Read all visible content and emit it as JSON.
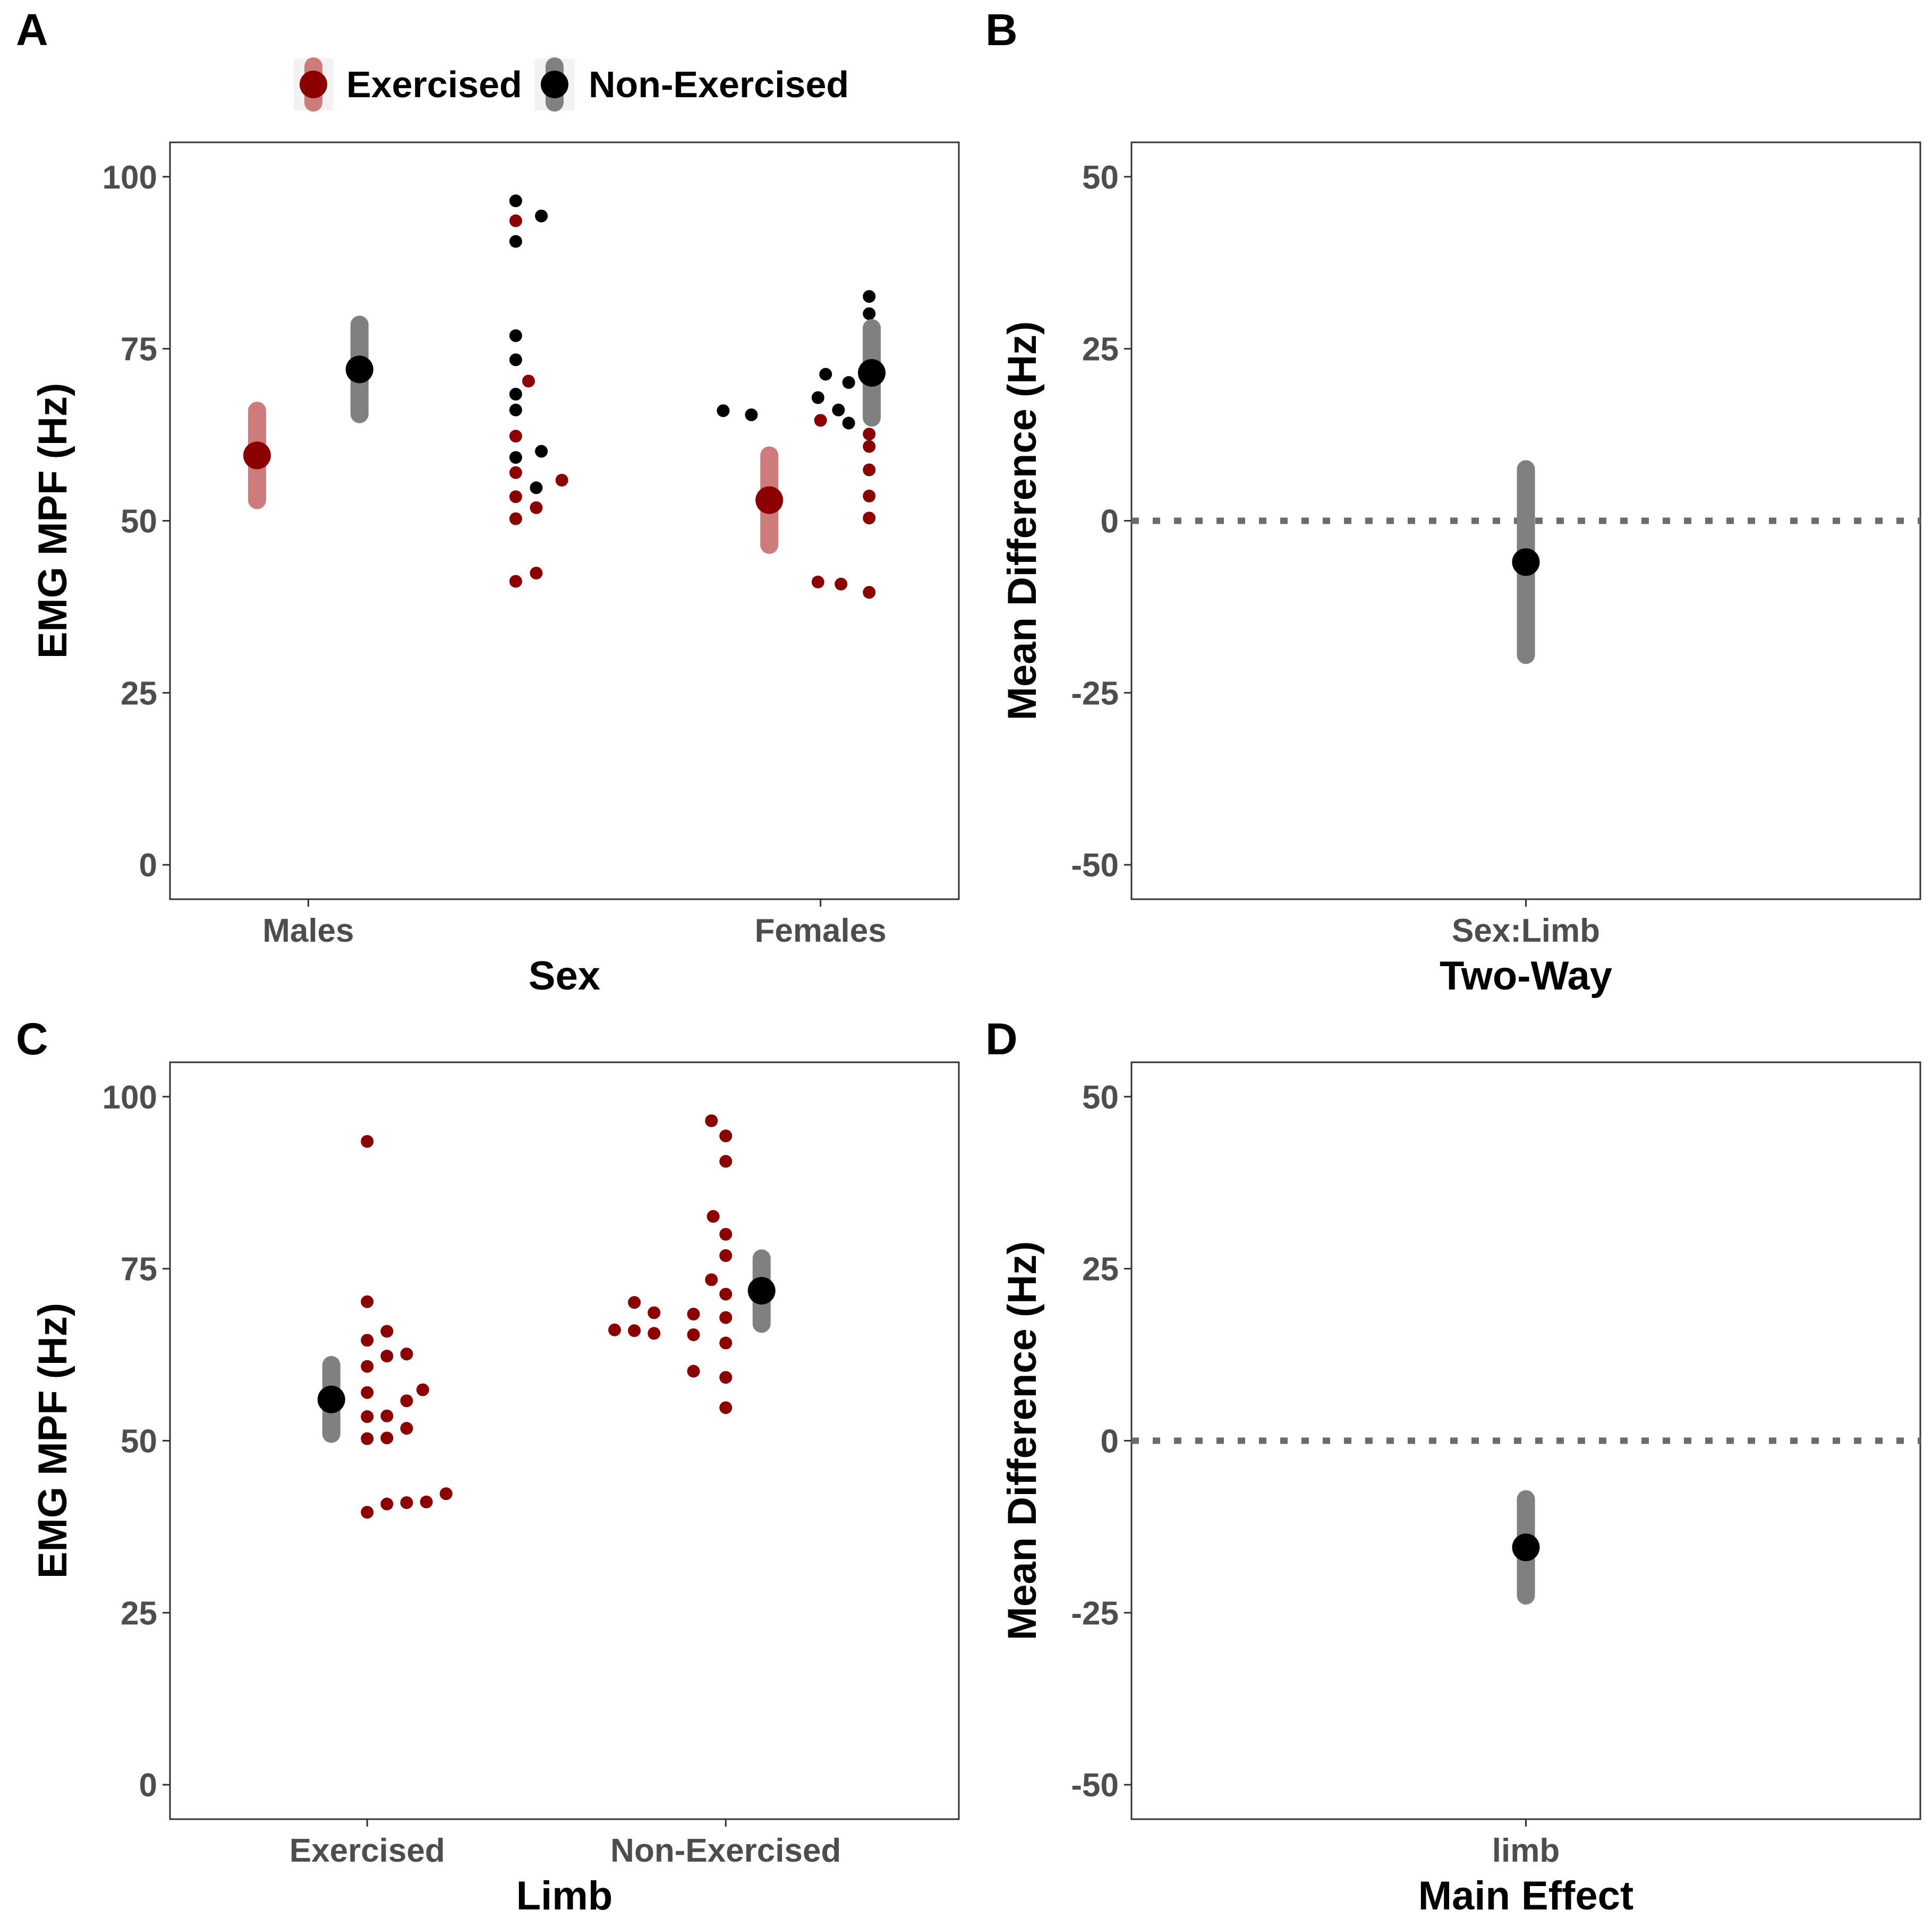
{
  "colors": {
    "exercised": "#8b0000",
    "exercised_ci": "#cd7b7b",
    "non_exercised": "#000000",
    "non_exercised_ci": "#808080",
    "ref_line": "#6b6b6b"
  },
  "legend": {
    "items": [
      {
        "label": "Exercised",
        "color": "#8b0000",
        "ci_color": "#cd7b7b"
      },
      {
        "label": "Non-Exercised",
        "color": "#000000",
        "ci_color": "#808080"
      }
    ]
  },
  "chart_data": [
    {
      "panel": "A",
      "type": "scatter",
      "xlabel": "Sex",
      "ylabel": "EMG MPF (Hz)",
      "ylim": [
        -5,
        105
      ],
      "yticks": [
        0,
        25,
        50,
        75,
        100
      ],
      "ytick_labels": [
        "0",
        "25",
        "50",
        "75",
        "100"
      ],
      "categories": [
        "Males",
        "Females"
      ],
      "summary": [
        {
          "category": "Males",
          "series": "Exercised",
          "offset": -0.1,
          "mean": 59.5,
          "lo": 53,
          "hi": 66,
          "color": "#8b0000",
          "ci_color": "#cd7b7b"
        },
        {
          "category": "Males",
          "series": "Non-Exercised",
          "offset": 0.1,
          "mean": 72,
          "lo": 65.5,
          "hi": 78.5,
          "color": "#000000",
          "ci_color": "#808080"
        },
        {
          "category": "Females",
          "series": "Exercised",
          "offset": -0.1,
          "mean": 53,
          "lo": 46.5,
          "hi": 59.5,
          "color": "#8b0000",
          "ci_color": "#cd7b7b"
        },
        {
          "category": "Females",
          "series": "Non-Exercised",
          "offset": 0.1,
          "mean": 71.5,
          "lo": 65,
          "hi": 78,
          "color": "#000000",
          "ci_color": "#808080"
        }
      ],
      "points": [
        {
          "x": 0.405,
          "y": 96.5,
          "color": "#000000"
        },
        {
          "x": 0.455,
          "y": 94.3,
          "color": "#000000"
        },
        {
          "x": 0.405,
          "y": 93.6,
          "color": "#8b0000"
        },
        {
          "x": 0.405,
          "y": 90.6,
          "color": "#000000"
        },
        {
          "x": 0.405,
          "y": 76.9,
          "color": "#000000"
        },
        {
          "x": 0.405,
          "y": 73.4,
          "color": "#000000"
        },
        {
          "x": 0.43,
          "y": 70.3,
          "color": "#8b0000"
        },
        {
          "x": 0.405,
          "y": 68.4,
          "color": "#000000"
        },
        {
          "x": 0.405,
          "y": 66.1,
          "color": "#000000"
        },
        {
          "x": 0.405,
          "y": 62.3,
          "color": "#8b0000"
        },
        {
          "x": 0.455,
          "y": 60.1,
          "color": "#000000"
        },
        {
          "x": 0.405,
          "y": 59.2,
          "color": "#000000"
        },
        {
          "x": 0.405,
          "y": 57.0,
          "color": "#8b0000"
        },
        {
          "x": 0.495,
          "y": 55.9,
          "color": "#8b0000"
        },
        {
          "x": 0.445,
          "y": 54.8,
          "color": "#000000"
        },
        {
          "x": 0.405,
          "y": 53.5,
          "color": "#8b0000"
        },
        {
          "x": 0.445,
          "y": 51.9,
          "color": "#8b0000"
        },
        {
          "x": 0.405,
          "y": 50.3,
          "color": "#8b0000"
        },
        {
          "x": 0.445,
          "y": 42.4,
          "color": "#8b0000"
        },
        {
          "x": 0.405,
          "y": 41.2,
          "color": "#8b0000"
        },
        {
          "x": 1.095,
          "y": 82.6,
          "color": "#000000"
        },
        {
          "x": 1.095,
          "y": 80.1,
          "color": "#000000"
        },
        {
          "x": 1.01,
          "y": 71.3,
          "color": "#000000"
        },
        {
          "x": 1.055,
          "y": 70.1,
          "color": "#000000"
        },
        {
          "x": 0.995,
          "y": 67.9,
          "color": "#000000"
        },
        {
          "x": 1.095,
          "y": 68.6,
          "color": "#000000"
        },
        {
          "x": 0.81,
          "y": 66.0,
          "color": "#000000"
        },
        {
          "x": 0.865,
          "y": 65.4,
          "color": "#000000"
        },
        {
          "x": 1.035,
          "y": 66.1,
          "color": "#000000"
        },
        {
          "x": 1.095,
          "y": 66.0,
          "color": "#8b0000"
        },
        {
          "x": 1.0,
          "y": 64.6,
          "color": "#8b0000"
        },
        {
          "x": 1.055,
          "y": 64.2,
          "color": "#000000"
        },
        {
          "x": 1.095,
          "y": 62.6,
          "color": "#8b0000"
        },
        {
          "x": 1.095,
          "y": 60.8,
          "color": "#8b0000"
        },
        {
          "x": 1.095,
          "y": 57.4,
          "color": "#8b0000"
        },
        {
          "x": 1.095,
          "y": 53.6,
          "color": "#8b0000"
        },
        {
          "x": 1.095,
          "y": 50.4,
          "color": "#8b0000"
        },
        {
          "x": 0.995,
          "y": 41.1,
          "color": "#8b0000"
        },
        {
          "x": 1.04,
          "y": 40.8,
          "color": "#8b0000"
        },
        {
          "x": 1.095,
          "y": 39.6,
          "color": "#8b0000"
        }
      ]
    },
    {
      "panel": "B",
      "type": "scatter",
      "xlabel": "Two-Way",
      "ylabel": "Mean Difference (Hz)",
      "ylim": [
        -55,
        55
      ],
      "yticks": [
        -50,
        -25,
        0,
        25,
        50
      ],
      "ytick_labels": [
        "-50",
        "-25",
        "0",
        "25",
        "50"
      ],
      "categories": [
        "Sex:Limb"
      ],
      "ref_line": 0,
      "summary": [
        {
          "category": "Sex:Limb",
          "offset": 0,
          "mean": -6,
          "lo": -19.5,
          "hi": 7.5,
          "color": "#000000",
          "ci_color": "#808080"
        }
      ]
    },
    {
      "panel": "C",
      "type": "scatter",
      "xlabel": "Limb",
      "ylabel": "EMG MPF (Hz)",
      "ylim": [
        -5,
        105
      ],
      "yticks": [
        0,
        25,
        50,
        75,
        100
      ],
      "ytick_labels": [
        "0",
        "25",
        "50",
        "75",
        "100"
      ],
      "categories": [
        "Exercised",
        "Non-Exercised"
      ],
      "summary": [
        {
          "category": "Exercised",
          "offset": -0.1,
          "mean": 56,
          "lo": 51,
          "hi": 61,
          "color": "#000000",
          "ci_color": "#808080"
        },
        {
          "category": "Non-Exercised",
          "offset": 0.1,
          "mean": 71.8,
          "lo": 67,
          "hi": 76.5,
          "color": "#000000",
          "ci_color": "#808080"
        }
      ],
      "points": [
        {
          "x": 0.0,
          "y": 93.5,
          "color": "#8b0000"
        },
        {
          "x": 0.0,
          "y": 70.2,
          "color": "#8b0000"
        },
        {
          "x": 0.0,
          "y": 64.6,
          "color": "#8b0000"
        },
        {
          "x": 0.055,
          "y": 65.9,
          "color": "#8b0000"
        },
        {
          "x": 0.055,
          "y": 62.3,
          "color": "#8b0000"
        },
        {
          "x": 0.11,
          "y": 62.6,
          "color": "#8b0000"
        },
        {
          "x": 0.0,
          "y": 60.8,
          "color": "#8b0000"
        },
        {
          "x": 0.155,
          "y": 57.4,
          "color": "#8b0000"
        },
        {
          "x": 0.0,
          "y": 57.0,
          "color": "#8b0000"
        },
        {
          "x": 0.11,
          "y": 55.8,
          "color": "#8b0000"
        },
        {
          "x": 0.055,
          "y": 53.6,
          "color": "#8b0000"
        },
        {
          "x": 0.0,
          "y": 53.5,
          "color": "#8b0000"
        },
        {
          "x": 0.11,
          "y": 51.8,
          "color": "#8b0000"
        },
        {
          "x": 0.0,
          "y": 50.3,
          "color": "#8b0000"
        },
        {
          "x": 0.055,
          "y": 50.4,
          "color": "#8b0000"
        },
        {
          "x": 0.0,
          "y": 39.6,
          "color": "#8b0000"
        },
        {
          "x": 0.055,
          "y": 40.8,
          "color": "#8b0000"
        },
        {
          "x": 0.11,
          "y": 41.0,
          "color": "#8b0000"
        },
        {
          "x": 0.165,
          "y": 41.1,
          "color": "#8b0000"
        },
        {
          "x": 0.22,
          "y": 42.3,
          "color": "#8b0000"
        },
        {
          "x": 0.96,
          "y": 96.5,
          "color": "#8b0000"
        },
        {
          "x": 1.0,
          "y": 94.3,
          "color": "#8b0000"
        },
        {
          "x": 1.0,
          "y": 90.6,
          "color": "#8b0000"
        },
        {
          "x": 0.965,
          "y": 82.6,
          "color": "#8b0000"
        },
        {
          "x": 1.0,
          "y": 80.0,
          "color": "#8b0000"
        },
        {
          "x": 1.0,
          "y": 76.9,
          "color": "#8b0000"
        },
        {
          "x": 0.96,
          "y": 73.4,
          "color": "#8b0000"
        },
        {
          "x": 1.0,
          "y": 71.3,
          "color": "#8b0000"
        },
        {
          "x": 0.745,
          "y": 70.1,
          "color": "#8b0000"
        },
        {
          "x": 0.8,
          "y": 68.6,
          "color": "#8b0000"
        },
        {
          "x": 0.91,
          "y": 68.4,
          "color": "#8b0000"
        },
        {
          "x": 1.0,
          "y": 67.9,
          "color": "#8b0000"
        },
        {
          "x": 0.69,
          "y": 66.1,
          "color": "#8b0000"
        },
        {
          "x": 0.745,
          "y": 66.0,
          "color": "#8b0000"
        },
        {
          "x": 0.8,
          "y": 65.6,
          "color": "#8b0000"
        },
        {
          "x": 0.91,
          "y": 65.4,
          "color": "#8b0000"
        },
        {
          "x": 1.0,
          "y": 64.2,
          "color": "#8b0000"
        },
        {
          "x": 0.91,
          "y": 60.1,
          "color": "#8b0000"
        },
        {
          "x": 1.0,
          "y": 59.2,
          "color": "#8b0000"
        },
        {
          "x": 1.0,
          "y": 54.8,
          "color": "#8b0000"
        }
      ]
    },
    {
      "panel": "D",
      "type": "scatter",
      "xlabel": "Main Effect",
      "ylabel": "Mean Difference (Hz)",
      "ylim": [
        -55,
        55
      ],
      "yticks": [
        -50,
        -25,
        0,
        25,
        50
      ],
      "ytick_labels": [
        "-50",
        "-25",
        "0",
        "25",
        "50"
      ],
      "categories": [
        "limb"
      ],
      "ref_line": 0,
      "summary": [
        {
          "category": "limb",
          "offset": 0,
          "mean": -15.5,
          "lo": -22.5,
          "hi": -8.5,
          "color": "#000000",
          "ci_color": "#808080"
        }
      ]
    }
  ]
}
